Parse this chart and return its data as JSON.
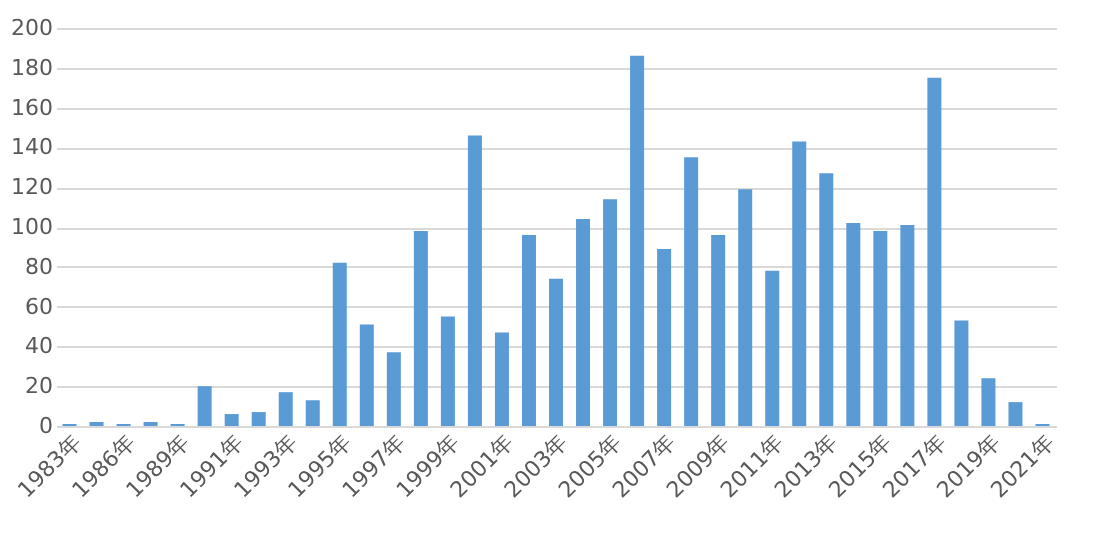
{
  "chart_data": {
    "type": "bar",
    "categories": [
      "1983年",
      null,
      "1986年",
      null,
      "1989年",
      null,
      "1991年",
      null,
      "1993年",
      null,
      "1995年",
      null,
      "1997年",
      null,
      "1999年",
      null,
      "2001年",
      null,
      "2003年",
      null,
      "2005年",
      null,
      "2007年",
      null,
      "2009年",
      null,
      "2011年",
      null,
      "2013年",
      null,
      "2015年",
      null,
      "2017年",
      null,
      "2019年",
      null,
      "2021年"
    ],
    "values": [
      1,
      2,
      1,
      2,
      1,
      20,
      6,
      7,
      17,
      13,
      82,
      51,
      37,
      98,
      55,
      146,
      47,
      96,
      74,
      104,
      114,
      186,
      89,
      135,
      96,
      119,
      78,
      143,
      127,
      102,
      98,
      101,
      175,
      53,
      24,
      12,
      1
    ],
    "color": "#5b9bd5",
    "ylim": [
      0,
      200
    ],
    "yticks": [
      0,
      20,
      40,
      60,
      80,
      100,
      120,
      140,
      160,
      180,
      200
    ],
    "grid": "y"
  }
}
